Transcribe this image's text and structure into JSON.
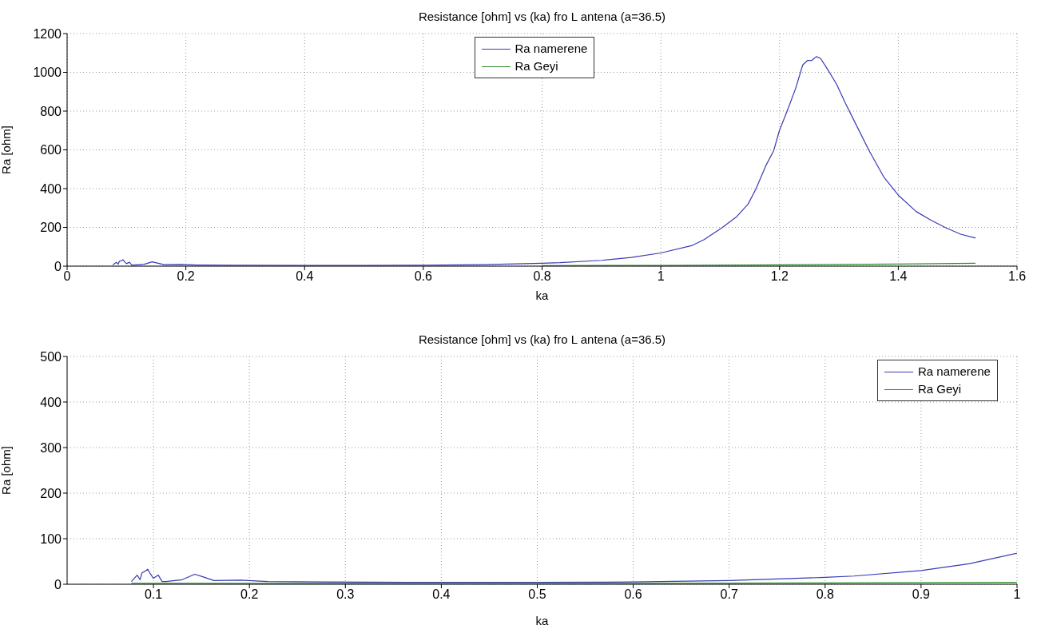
{
  "chart_data": [
    {
      "type": "line",
      "title": "Resistance [ohm] vs (ka) fro L antena (a=36.5)",
      "xlabel": "ka",
      "ylabel": "Ra [ohm]",
      "xlim": [
        0,
        1.6
      ],
      "xticks": [
        0,
        0.2,
        0.4,
        0.6,
        0.8,
        1,
        1.2,
        1.4,
        1.6
      ],
      "ylim": [
        0,
        1200
      ],
      "yticks": [
        0,
        200,
        400,
        600,
        800,
        1000,
        1200
      ],
      "grid": true,
      "legend": "top",
      "line_style": "solid",
      "marker": "none",
      "series": [
        {
          "name": "Ra namerene",
          "color": "#3a3ab4",
          "x": [
            0.077,
            0.08,
            0.083,
            0.086,
            0.088,
            0.091,
            0.094,
            0.097,
            0.1,
            0.105,
            0.109,
            0.113,
            0.13,
            0.143,
            0.152,
            0.163,
            0.191,
            0.219,
            0.274,
            0.4,
            0.5,
            0.6,
            0.7,
            0.8,
            0.83,
            0.9,
            0.95,
            1.0,
            1.053,
            1.073,
            1.103,
            1.128,
            1.147,
            1.16,
            1.177,
            1.19,
            1.2,
            1.212,
            1.227,
            1.239,
            1.247,
            1.254,
            1.262,
            1.269,
            1.281,
            1.296,
            1.311,
            1.326,
            1.351,
            1.376,
            1.4,
            1.43,
            1.455,
            1.48,
            1.505,
            1.53
          ],
          "values": [
            6,
            13,
            20,
            10,
            25,
            28,
            33,
            22,
            13,
            20,
            6,
            6,
            10,
            22,
            16,
            8,
            9,
            6,
            5,
            4,
            4,
            5,
            8,
            15,
            18,
            30,
            45,
            68,
            107,
            137,
            198,
            256,
            320,
            397,
            519,
            595,
            702,
            794,
            916,
            1038,
            1061,
            1061,
            1081,
            1072,
            1015,
            939,
            840,
            748,
            595,
            458,
            366,
            282,
            237,
            198,
            165,
            145
          ]
        },
        {
          "name": "Ra Geyi",
          "color": "#2e8b2e",
          "x": [
            0.8,
            1.0,
            1.2,
            1.4,
            1.53
          ],
          "values": [
            3,
            4,
            7,
            11,
            15
          ]
        }
      ]
    },
    {
      "type": "line",
      "title": "Resistance [ohm] vs (ka) fro L antena (a=36.5)",
      "xlabel": "ka",
      "ylabel": "Ra [ohm]",
      "xlim": [
        0.01,
        1
      ],
      "xticks": [
        0.1,
        0.2,
        0.3,
        0.4,
        0.5,
        0.6,
        0.7,
        0.8,
        0.9,
        1
      ],
      "ylim": [
        0,
        500
      ],
      "yticks": [
        0,
        100,
        200,
        300,
        400,
        500
      ],
      "grid": true,
      "legend": "top right",
      "line_style": "solid",
      "marker": "none",
      "series": [
        {
          "name": "Ra namerene",
          "color": "#3a3ab4",
          "x": [
            0.077,
            0.08,
            0.083,
            0.086,
            0.088,
            0.091,
            0.094,
            0.097,
            0.1,
            0.105,
            0.109,
            0.113,
            0.13,
            0.143,
            0.152,
            0.163,
            0.191,
            0.219,
            0.274,
            0.4,
            0.5,
            0.6,
            0.7,
            0.8,
            0.83,
            0.9,
            0.95,
            1.0
          ],
          "values": [
            6,
            13,
            20,
            10,
            25,
            28,
            33,
            22,
            13,
            20,
            6,
            6,
            10,
            22,
            16,
            8,
            9,
            6,
            5,
            4,
            4,
            5,
            8,
            15,
            18,
            30,
            45,
            68
          ]
        },
        {
          "name": "Ra Geyi",
          "color": "#2e8b2e",
          "x": [
            0.077,
            0.3,
            0.6,
            0.8,
            1.0
          ],
          "values": [
            2,
            2,
            2,
            3,
            4
          ]
        }
      ]
    }
  ]
}
